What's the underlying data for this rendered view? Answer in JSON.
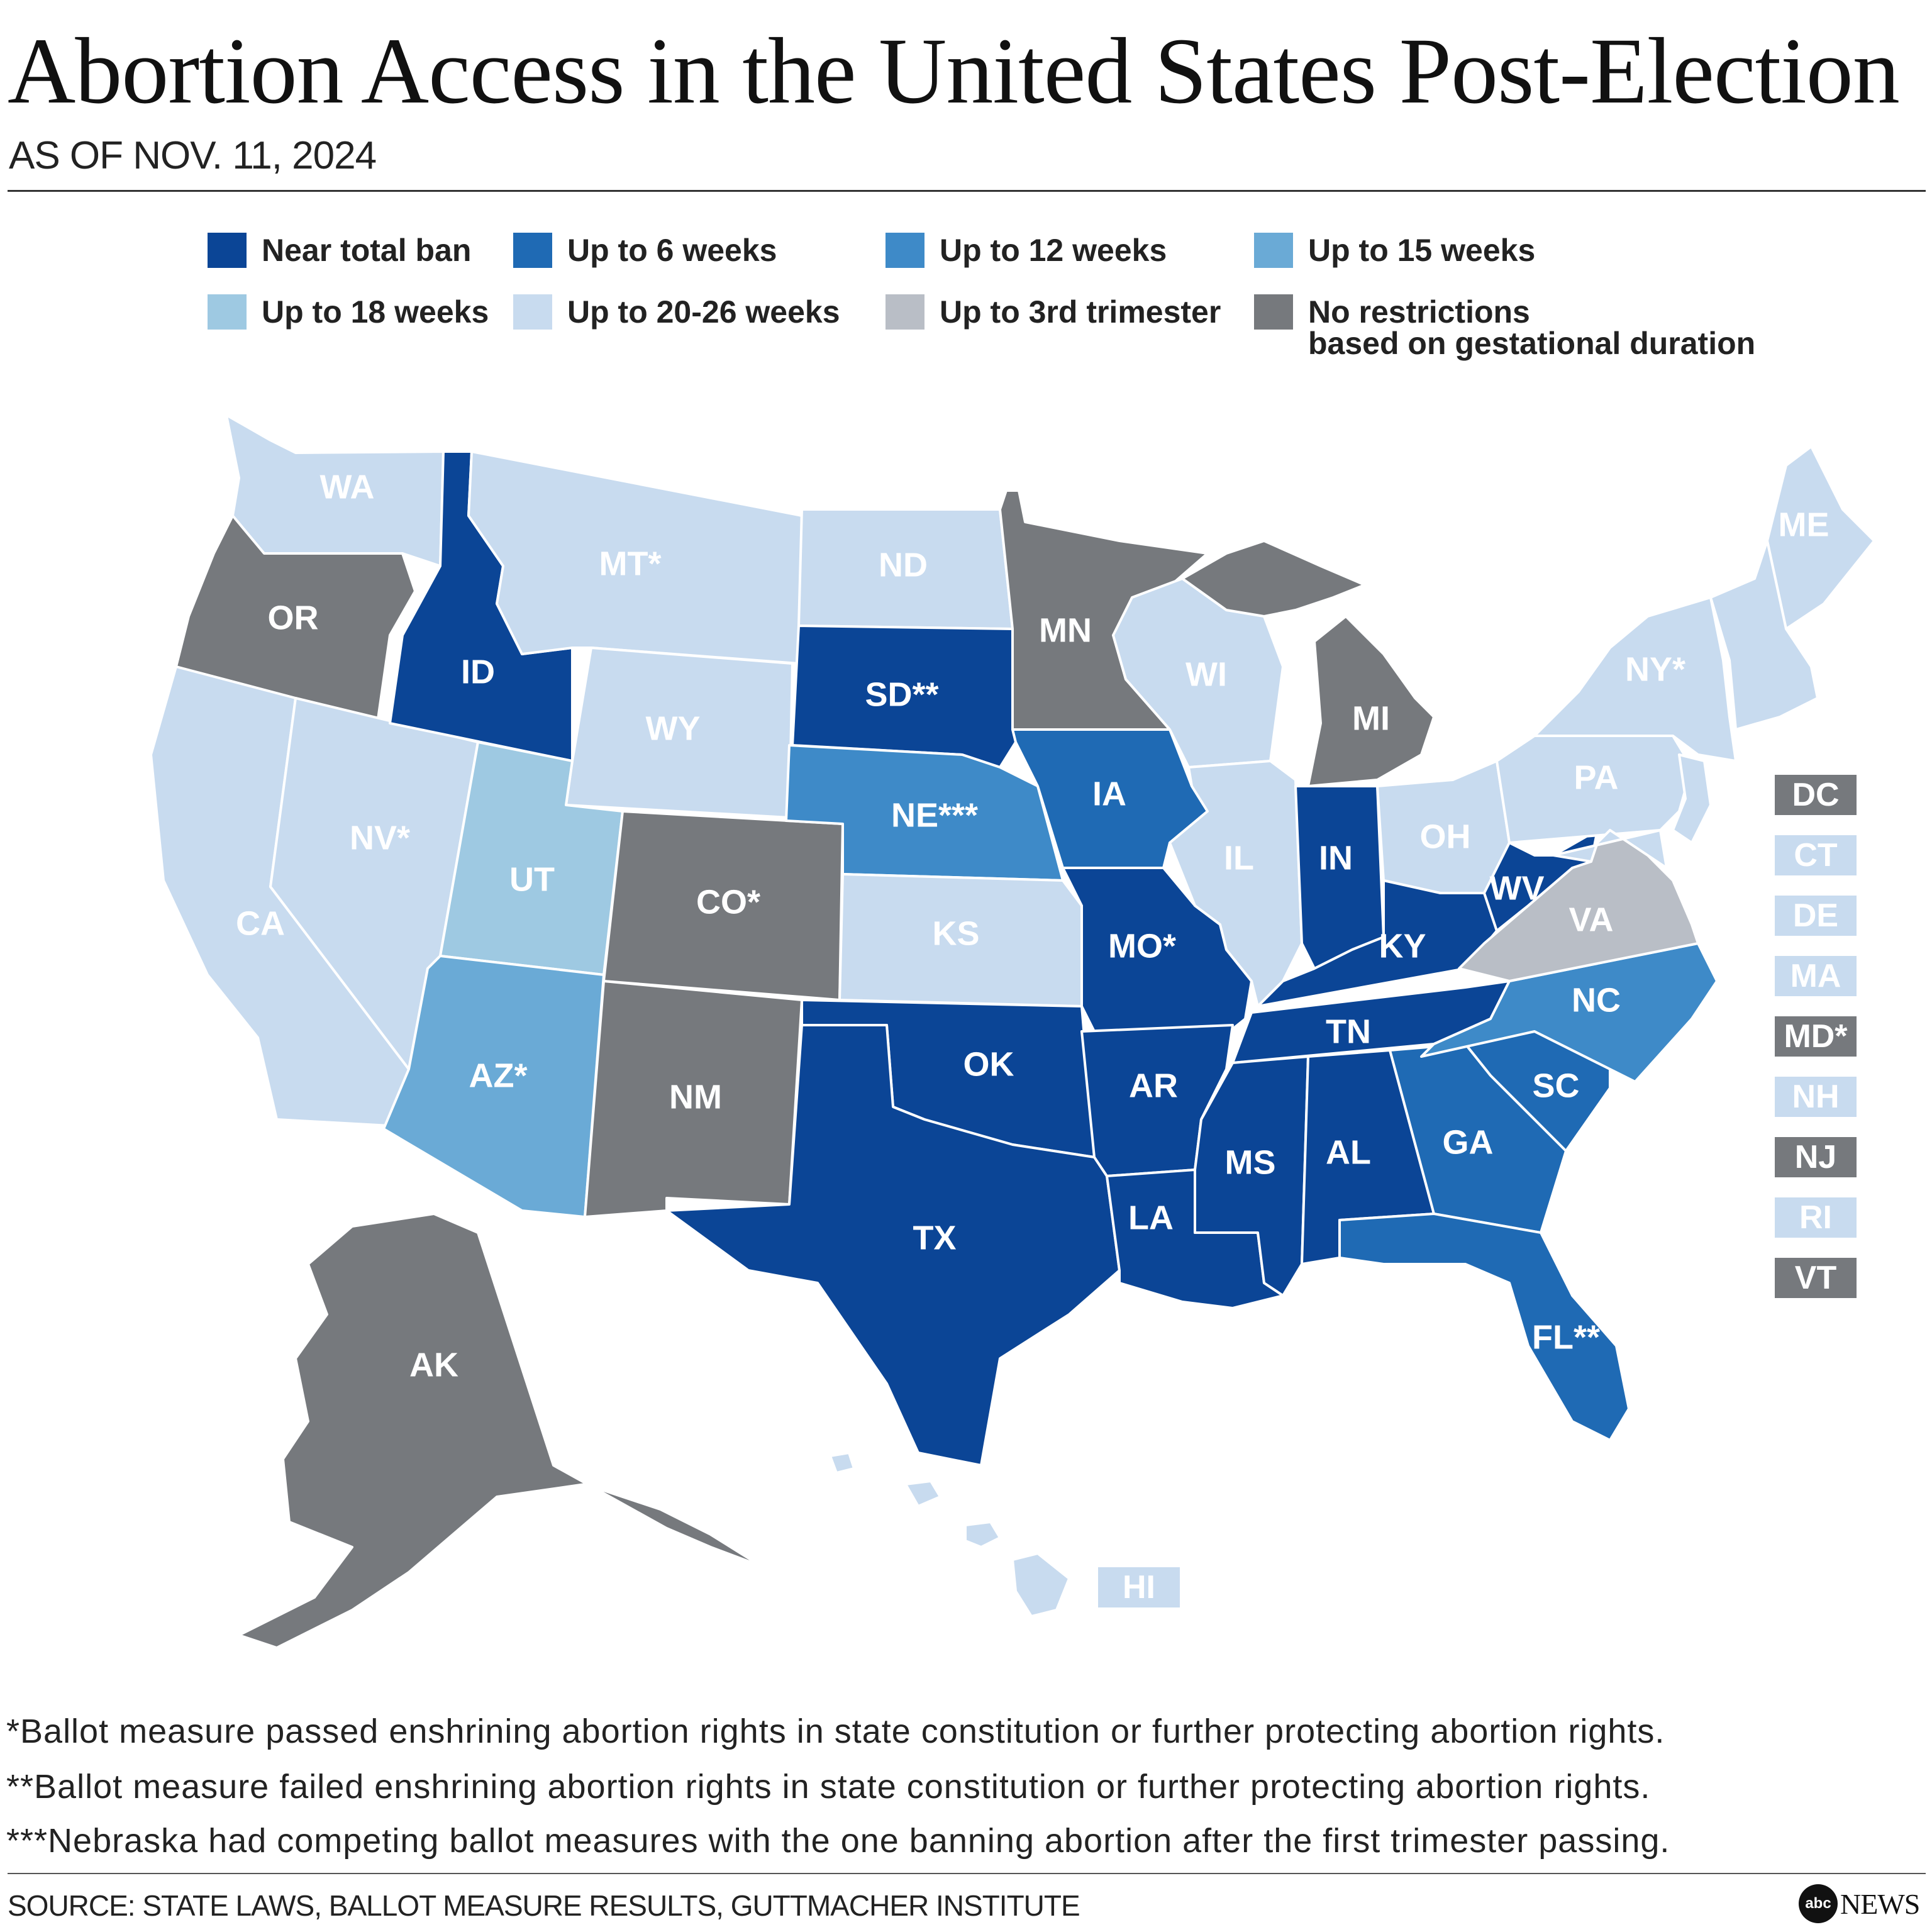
{
  "title": "Abortion Access in the United States Post-Election",
  "subtitle": "AS OF NOV. 11, 2024",
  "legend": [
    {
      "key": "ban",
      "label": "Near total ban",
      "color": "#0b4596"
    },
    {
      "key": "w6",
      "label": "Up to 6 weeks",
      "color": "#1f6ab4"
    },
    {
      "key": "w12",
      "label": "Up to 12 weeks",
      "color": "#3e8ac8"
    },
    {
      "key": "w15",
      "label": "Up to 15 weeks",
      "color": "#6aaad6"
    },
    {
      "key": "w18",
      "label": "Up to 18 weeks",
      "color": "#9ec9e2"
    },
    {
      "key": "w20",
      "label": "Up to 20-26 weeks",
      "color": "#c8dbef"
    },
    {
      "key": "tri3",
      "label": "Up to 3rd trimester",
      "color": "#b9bec6"
    },
    {
      "key": "none",
      "label": "No restrictions\nbased on gestational duration",
      "color": "#76797d"
    }
  ],
  "states": {
    "WA": {
      "label": "WA",
      "category": "w20"
    },
    "OR": {
      "label": "OR",
      "category": "none"
    },
    "CA": {
      "label": "CA",
      "category": "w20"
    },
    "ID": {
      "label": "ID",
      "category": "ban"
    },
    "NV": {
      "label": "NV*",
      "category": "w20"
    },
    "MT": {
      "label": "MT*",
      "category": "w20"
    },
    "WY": {
      "label": "WY",
      "category": "w20"
    },
    "UT": {
      "label": "UT",
      "category": "w18"
    },
    "AZ": {
      "label": "AZ*",
      "category": "w15"
    },
    "CO": {
      "label": "CO*",
      "category": "none"
    },
    "NM": {
      "label": "NM",
      "category": "none"
    },
    "ND": {
      "label": "ND",
      "category": "w20"
    },
    "SD": {
      "label": "SD**",
      "category": "ban"
    },
    "NE": {
      "label": "NE***",
      "category": "w12"
    },
    "KS": {
      "label": "KS",
      "category": "w20"
    },
    "OK": {
      "label": "OK",
      "category": "ban"
    },
    "TX": {
      "label": "TX",
      "category": "ban"
    },
    "MN": {
      "label": "MN",
      "category": "none"
    },
    "IA": {
      "label": "IA",
      "category": "w6"
    },
    "MO": {
      "label": "MO*",
      "category": "ban"
    },
    "AR": {
      "label": "AR",
      "category": "ban"
    },
    "LA": {
      "label": "LA",
      "category": "ban"
    },
    "WI": {
      "label": "WI",
      "category": "w20"
    },
    "IL": {
      "label": "IL",
      "category": "w20"
    },
    "MS": {
      "label": "MS",
      "category": "ban"
    },
    "MI": {
      "label": "MI",
      "category": "none"
    },
    "IN": {
      "label": "IN",
      "category": "ban"
    },
    "KY": {
      "label": "KY",
      "category": "ban"
    },
    "TN": {
      "label": "TN",
      "category": "ban"
    },
    "AL": {
      "label": "AL",
      "category": "ban"
    },
    "OH": {
      "label": "OH",
      "category": "w20"
    },
    "WV": {
      "label": "WV",
      "category": "ban"
    },
    "VA": {
      "label": "VA",
      "category": "tri3"
    },
    "NC": {
      "label": "NC",
      "category": "w12"
    },
    "SC": {
      "label": "SC",
      "category": "w6"
    },
    "GA": {
      "label": "GA",
      "category": "w6"
    },
    "FL": {
      "label": "FL**",
      "category": "w6"
    },
    "PA": {
      "label": "PA",
      "category": "w20"
    },
    "NY": {
      "label": "NY*",
      "category": "w20"
    },
    "ME": {
      "label": "ME",
      "category": "w20"
    },
    "AK": {
      "label": "AK",
      "category": "none"
    },
    "HI": {
      "label": "HI",
      "category": "w20"
    }
  },
  "small_states": [
    {
      "label": "DC",
      "category": "none"
    },
    {
      "label": "CT",
      "category": "w20"
    },
    {
      "label": "DE",
      "category": "w20"
    },
    {
      "label": "MA",
      "category": "w20"
    },
    {
      "label": "MD*",
      "category": "none"
    },
    {
      "label": "NH",
      "category": "w20"
    },
    {
      "label": "NJ",
      "category": "none"
    },
    {
      "label": "RI",
      "category": "w20"
    },
    {
      "label": "VT",
      "category": "none"
    }
  ],
  "notes": [
    "*Ballot measure passed enshrining abortion rights in state constitution or further protecting abortion rights.",
    "**Ballot measure failed enshrining abortion rights in state constitution or further protecting abortion rights.",
    "***Nebraska had competing ballot measures with the one banning abortion after the first trimester passing."
  ],
  "source": "SOURCE: STATE LAWS, BALLOT MEASURE RESULTS, GUTTMACHER INSTITUTE",
  "brand": {
    "mark": "abc",
    "word": "NEWS"
  }
}
